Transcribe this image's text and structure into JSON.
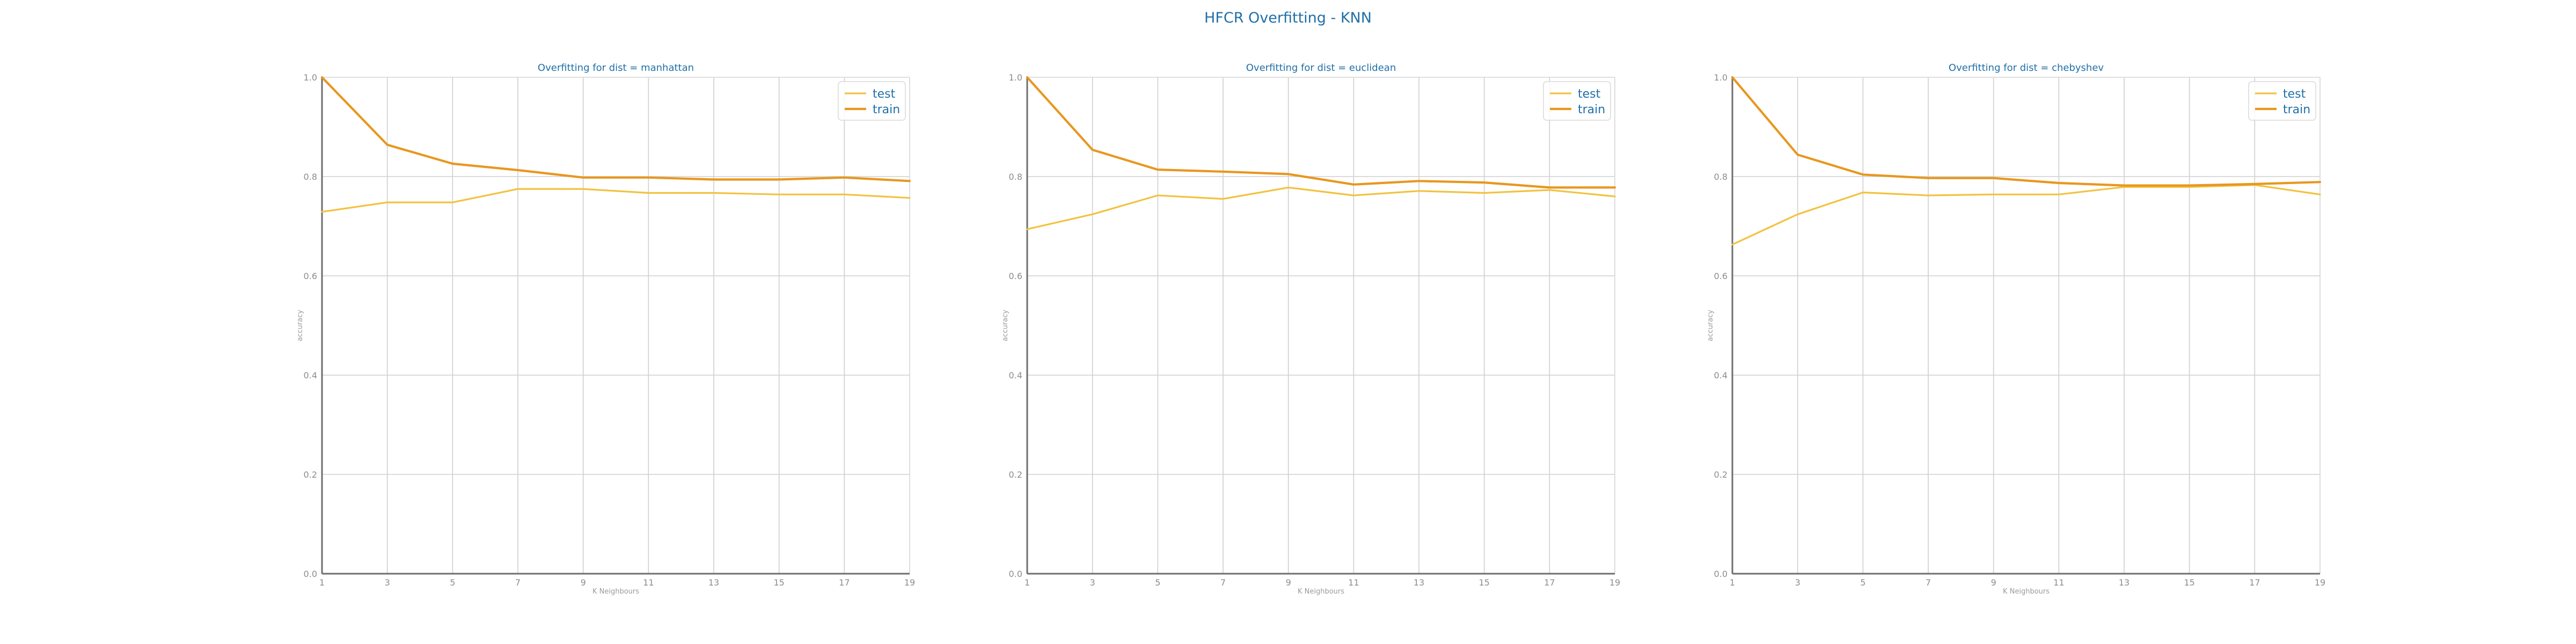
{
  "suptitle": "HFCR Overfitting - KNN",
  "colors": {
    "test": "#f2c240",
    "train": "#e8971f",
    "text": "#1f6fa8",
    "ticks": "#8c8c8c"
  },
  "chart_data": [
    {
      "type": "line",
      "title": "Overfitting for dist = manhattan",
      "xlabel": "K Neighbours",
      "ylabel": "accuracy",
      "x": [
        1,
        3,
        5,
        7,
        9,
        11,
        13,
        15,
        17,
        19
      ],
      "xticks": [
        "1",
        "3",
        "5",
        "7",
        "9",
        "11",
        "13",
        "15",
        "17",
        "19"
      ],
      "ylim": [
        0,
        1
      ],
      "yticks": [
        "0.0",
        "0.2",
        "0.4",
        "0.6",
        "0.8",
        "1.0"
      ],
      "grid": true,
      "legend": "top-right",
      "series": [
        {
          "name": "test",
          "color": "#f2c240",
          "values": [
            0.729,
            0.748,
            0.748,
            0.775,
            0.775,
            0.767,
            0.767,
            0.764,
            0.764,
            0.757
          ]
        },
        {
          "name": "train",
          "color": "#e8971f",
          "values": [
            1.0,
            0.864,
            0.826,
            0.813,
            0.798,
            0.798,
            0.794,
            0.794,
            0.798,
            0.791
          ]
        }
      ]
    },
    {
      "type": "line",
      "title": "Overfitting for dist = euclidean",
      "xlabel": "K Neighbours",
      "ylabel": "accuracy",
      "x": [
        1,
        3,
        5,
        7,
        9,
        11,
        13,
        15,
        17,
        19
      ],
      "xticks": [
        "1",
        "3",
        "5",
        "7",
        "9",
        "11",
        "13",
        "15",
        "17",
        "19"
      ],
      "ylim": [
        0,
        1
      ],
      "yticks": [
        "0.0",
        "0.2",
        "0.4",
        "0.6",
        "0.8",
        "1.0"
      ],
      "grid": true,
      "legend": "top-right",
      "series": [
        {
          "name": "test",
          "color": "#f2c240",
          "values": [
            0.694,
            0.724,
            0.762,
            0.755,
            0.778,
            0.762,
            0.771,
            0.767,
            0.773,
            0.76
          ]
        },
        {
          "name": "train",
          "color": "#e8971f",
          "values": [
            1.0,
            0.854,
            0.814,
            0.81,
            0.805,
            0.784,
            0.791,
            0.788,
            0.778,
            0.778
          ]
        }
      ]
    },
    {
      "type": "line",
      "title": "Overfitting for dist = chebyshev",
      "xlabel": "K Neighbours",
      "ylabel": "accuracy",
      "x": [
        1,
        3,
        5,
        7,
        9,
        11,
        13,
        15,
        17,
        19
      ],
      "xticks": [
        "1",
        "3",
        "5",
        "7",
        "9",
        "11",
        "13",
        "15",
        "17",
        "19"
      ],
      "ylim": [
        0,
        1
      ],
      "yticks": [
        "0.0",
        "0.2",
        "0.4",
        "0.6",
        "0.8",
        "1.0"
      ],
      "grid": true,
      "legend": "top-right",
      "series": [
        {
          "name": "test",
          "color": "#f2c240",
          "values": [
            0.663,
            0.724,
            0.768,
            0.762,
            0.764,
            0.764,
            0.779,
            0.779,
            0.783,
            0.764
          ]
        },
        {
          "name": "train",
          "color": "#e8971f",
          "values": [
            1.0,
            0.844,
            0.804,
            0.797,
            0.797,
            0.787,
            0.782,
            0.782,
            0.785,
            0.789
          ]
        }
      ]
    }
  ]
}
